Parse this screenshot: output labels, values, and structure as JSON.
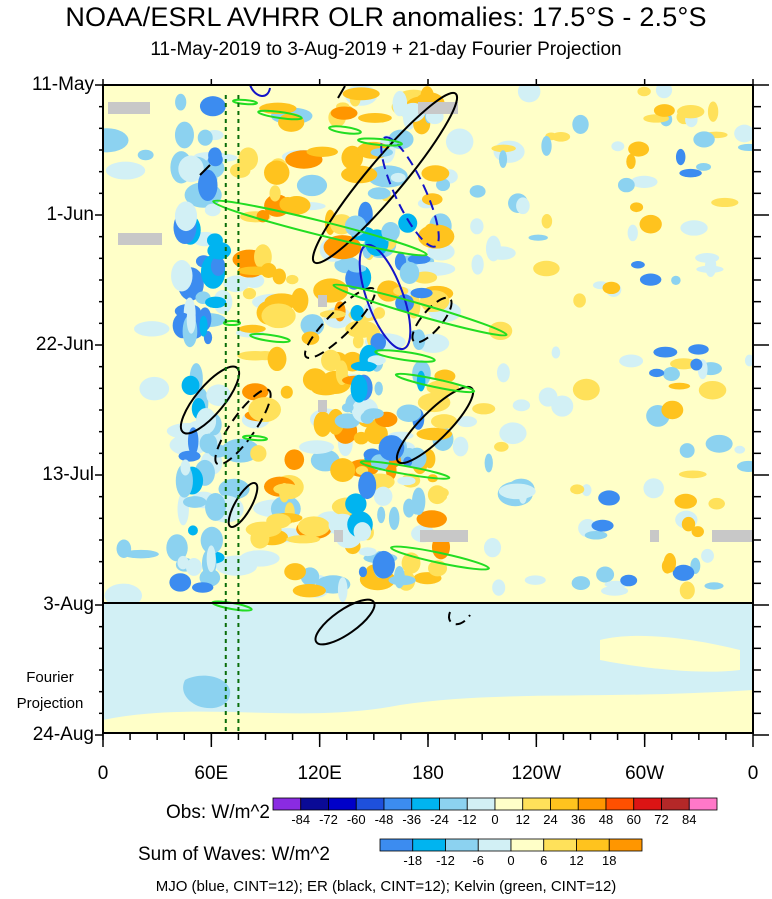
{
  "chart_data": {
    "type": "heatmap",
    "title": "NOAA/ESRL AVHRR OLR anomalies: 17.5°S - 2.5°S",
    "subtitle": "11-May-2019 to 3-Aug-2019 + 21-day Fourier Projection",
    "y_ticks": [
      "11-May",
      "1-Jun",
      "22-Jun",
      "13-Jul",
      "3-Aug",
      "24-Aug"
    ],
    "x_ticks": [
      "0",
      "60E",
      "120E",
      "180",
      "120W",
      "60W",
      "0"
    ],
    "x_range_deg_east": [
      0,
      360
    ],
    "projection_label": [
      "Fourier",
      "Projection"
    ],
    "legend_obs": {
      "title": "Obs: W/m^2",
      "levels": [
        -84,
        -72,
        -60,
        -48,
        -36,
        -24,
        -12,
        0,
        12,
        24,
        36,
        48,
        60,
        72,
        84
      ],
      "colors": [
        "#8a2be2",
        "#0a0a96",
        "#0000c8",
        "#1e50dc",
        "#3c8cf0",
        "#00b4f0",
        "#8cd2f0",
        "#d2f0f5",
        "#ffffc8",
        "#ffe15a",
        "#ffc31e",
        "#ff9600",
        "#ff5000",
        "#dc1414",
        "#b42828",
        "#ff78c8"
      ]
    },
    "legend_waves": {
      "title": "Sum of Waves: W/m^2",
      "levels": [
        -18,
        -12,
        -6,
        0,
        6,
        12,
        18
      ],
      "colors": [
        "#3c8cf0",
        "#00b4f0",
        "#8cd2f0",
        "#d2f0f5",
        "#ffffc8",
        "#ffe15a",
        "#ffc31e",
        "#ff9600"
      ]
    },
    "footer": "MJO (blue, CINT=12); ER (black, CINT=12); Kelvin (green, CINT=12)",
    "filter_lines_deg": [
      68,
      75
    ]
  }
}
